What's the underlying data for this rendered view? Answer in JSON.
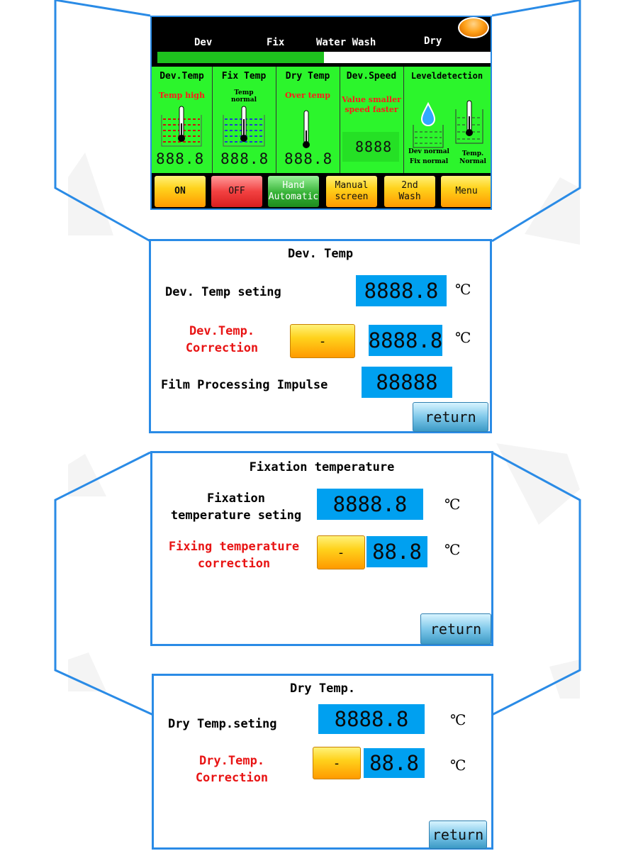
{
  "colors": {
    "accent_border": "#2a8be6",
    "panel_green": "#2cf52c",
    "value_blue": "#00a0f0",
    "warning_red": "#ff1a1a"
  },
  "main_screen": {
    "stages": [
      "Dev",
      "Fix",
      "Water Wash",
      "Dry"
    ],
    "progress_fraction": 0.5,
    "columns": {
      "dev_temp": {
        "title": "Dev.Temp",
        "status": "Temp high",
        "value": "888.8"
      },
      "fix_temp": {
        "title": "Fix Temp",
        "status_line1": "Temp",
        "status_line2": "normal",
        "value": "888.8"
      },
      "dry_temp": {
        "title": "Dry Temp",
        "status": "Over temp",
        "value": "888.8"
      },
      "dev_speed": {
        "title": "Dev.Speed",
        "status_line1": "Value smaller",
        "status_line2": "speed faster",
        "value": "8888"
      },
      "level": {
        "title": "Leveldetection",
        "dev_status": "Dev normal",
        "fix_status": "Fix normal",
        "temp_line1": "Temp.",
        "temp_line2": "Normal"
      }
    },
    "buttons": {
      "on": "ON",
      "off": "OFF",
      "hand_line1": "Hand",
      "hand_line2": "Automatic",
      "manual_line1": "Manual",
      "manual_line2": "screen",
      "wash_line1": "2nd",
      "wash_line2": "Wash",
      "menu": "Menu"
    }
  },
  "dev_dialog": {
    "title": "Dev. Temp",
    "setting_label": "Dev. Temp seting",
    "setting_value": "8888.8",
    "correction_line1": "Dev.Temp.",
    "correction_line2": "Correction",
    "minus_label": "-",
    "correction_value": "8888.8",
    "impulse_label": "Film Processing Impulse",
    "impulse_value": "88888",
    "unit": "℃",
    "return_label": "return"
  },
  "fix_dialog": {
    "title": "Fixation temperature",
    "setting_line1": "Fixation",
    "setting_line2": "temperature seting",
    "setting_value": "8888.8",
    "correction_line1": "Fixing temperature",
    "correction_line2": "correction",
    "minus_label": "-",
    "correction_value": "88.8",
    "unit": "℃",
    "return_label": "return"
  },
  "dry_dialog": {
    "title": "Dry Temp.",
    "setting_label": "Dry Temp.seting",
    "setting_value": "8888.8",
    "correction_line1": "Dry.Temp.",
    "correction_line2": "Correction",
    "minus_label": "-",
    "correction_value": "88.8",
    "unit": "℃",
    "return_label": "return"
  }
}
